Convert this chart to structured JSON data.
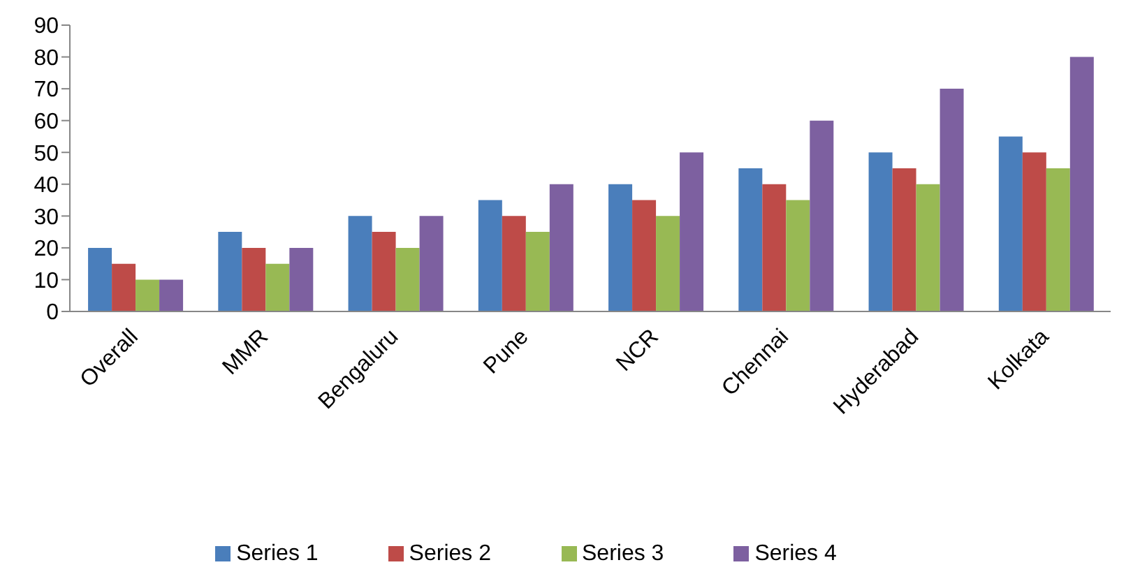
{
  "chart_data": {
    "type": "bar",
    "categories": [
      "Overall",
      "MMR",
      "Bengaluru",
      "Pune",
      "NCR",
      "Chennai",
      "Hyderabad",
      "Kolkata"
    ],
    "series": [
      {
        "name": "Series 1",
        "color": "#4a7ebb",
        "values": [
          20,
          25,
          30,
          35,
          40,
          45,
          50,
          55
        ]
      },
      {
        "name": "Series 2",
        "color": "#be4b48",
        "values": [
          15,
          20,
          25,
          30,
          35,
          40,
          45,
          50
        ]
      },
      {
        "name": "Series 3",
        "color": "#98b954",
        "values": [
          10,
          15,
          20,
          25,
          30,
          35,
          40,
          45
        ]
      },
      {
        "name": "Series 4",
        "color": "#7d60a0",
        "values": [
          10,
          20,
          30,
          40,
          50,
          60,
          70,
          80
        ]
      }
    ],
    "ylim": [
      0,
      90
    ],
    "yticks": [
      0,
      10,
      20,
      30,
      40,
      50,
      60,
      70,
      80,
      90
    ],
    "legend": "bottom"
  }
}
